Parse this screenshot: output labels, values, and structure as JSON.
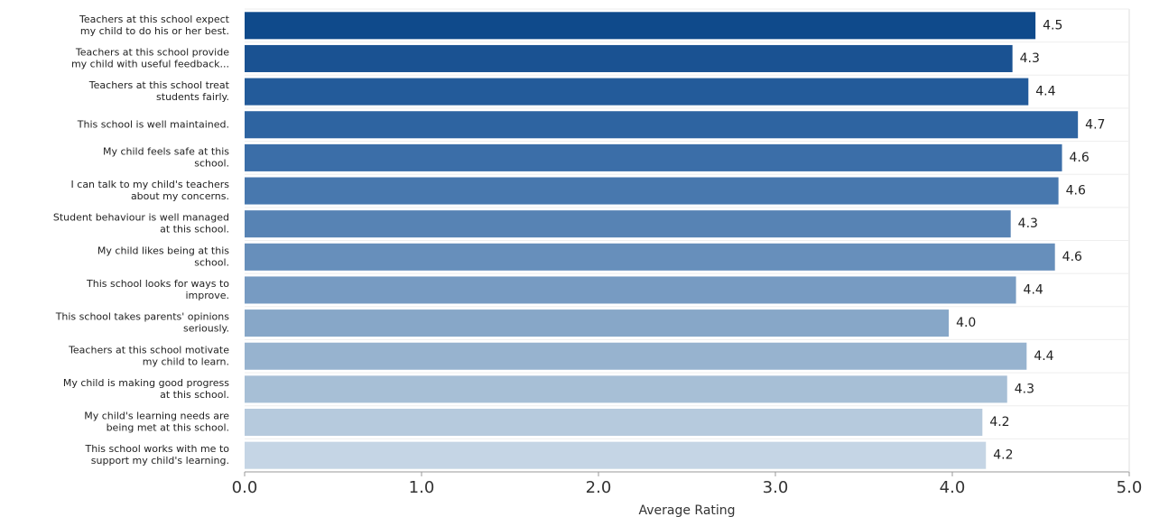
{
  "chart_data": {
    "type": "bar",
    "orientation": "horizontal",
    "categories": [
      [
        "Teachers at this school expect",
        "my child to do his or her best."
      ],
      [
        "Teachers at this school provide",
        "my child with useful feedback..."
      ],
      [
        "Teachers at this school treat",
        "students fairly."
      ],
      [
        "This school is well maintained."
      ],
      [
        "My child feels safe at this",
        "school."
      ],
      [
        "I can talk to my child's teachers",
        "about my concerns."
      ],
      [
        "Student behaviour is well managed",
        "at this school."
      ],
      [
        "My child likes being at this",
        "school."
      ],
      [
        "This school looks for ways to",
        "improve."
      ],
      [
        "This school takes parents' opinions",
        "seriously."
      ],
      [
        "Teachers at this school motivate",
        "my child to learn."
      ],
      [
        "My child is making good progress",
        "at this school."
      ],
      [
        "My child's learning needs are",
        "being met at this school."
      ],
      [
        "This school works with me to",
        "support my child's learning."
      ]
    ],
    "values": [
      4.47,
      4.34,
      4.43,
      4.71,
      4.62,
      4.6,
      4.33,
      4.58,
      4.36,
      3.98,
      4.42,
      4.31,
      4.17,
      4.19
    ],
    "value_labels": [
      "4.5",
      "4.3",
      "4.4",
      "4.7",
      "4.6",
      "4.6",
      "4.3",
      "4.6",
      "4.4",
      "4.0",
      "4.4",
      "4.3",
      "4.2",
      "4.2"
    ],
    "colors": [
      "#0f4a8b",
      "#1a5292",
      "#235b9a",
      "#2e64a1",
      "#3b6ea8",
      "#4878ae",
      "#5783b4",
      "#678fbb",
      "#779bc2",
      "#87a7c8",
      "#97b3cf",
      "#a7bfd6",
      "#b6cadd",
      "#c5d5e5"
    ],
    "xlim": [
      0,
      5
    ],
    "xticks": [
      {
        "value": 0,
        "label": "0.0"
      },
      {
        "value": 1,
        "label": "1.0"
      },
      {
        "value": 2,
        "label": "2.0"
      },
      {
        "value": 3,
        "label": "3.0"
      },
      {
        "value": 4,
        "label": "4.0"
      },
      {
        "value": 5,
        "label": "5.0"
      }
    ],
    "x_label": "Average Rating",
    "grid": false
  }
}
